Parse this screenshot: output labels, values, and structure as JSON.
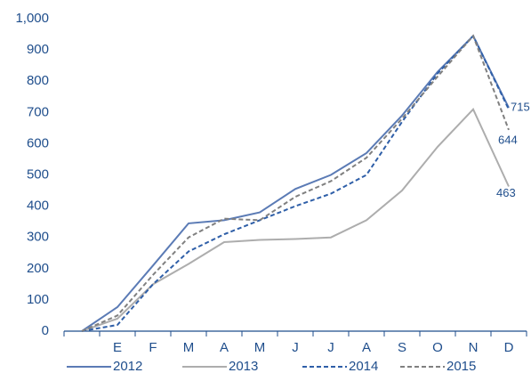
{
  "chart_data": {
    "type": "line",
    "categories": [
      null,
      "E",
      "F",
      "M",
      "A",
      "M",
      "J",
      "J",
      "A",
      "S",
      "O",
      "N",
      "D"
    ],
    "series": [
      {
        "name": "2012",
        "color": "#5b7bb5",
        "dash": false,
        "values": [
          0,
          77,
          210,
          345,
          355,
          380,
          455,
          500,
          570,
          690,
          830,
          945,
          715
        ]
      },
      {
        "name": "2013",
        "color": "#adadad",
        "dash": false,
        "values": [
          0,
          40,
          150,
          215,
          285,
          292,
          295,
          300,
          355,
          450,
          590,
          710,
          463
        ]
      },
      {
        "name": "2014",
        "color": "#2f5fa8",
        "dash": true,
        "values": [
          0,
          20,
          150,
          255,
          310,
          355,
          400,
          440,
          500,
          670,
          825,
          945,
          710
        ]
      },
      {
        "name": "2015",
        "color": "#808080",
        "dash": true,
        "values": [
          0,
          50,
          180,
          300,
          360,
          355,
          430,
          480,
          555,
          680,
          815,
          945,
          644
        ]
      }
    ],
    "data_labels": [
      {
        "series": 0,
        "index": 12
      },
      {
        "series": 3,
        "index": 12
      },
      {
        "series": 1,
        "index": 12
      }
    ],
    "ylim": [
      0,
      1000
    ],
    "yticks": [
      0,
      100,
      200,
      300,
      400,
      500,
      600,
      700,
      800,
      900,
      {
        "value": 1000,
        "label": "1,000"
      }
    ],
    "legend": "bottom"
  }
}
